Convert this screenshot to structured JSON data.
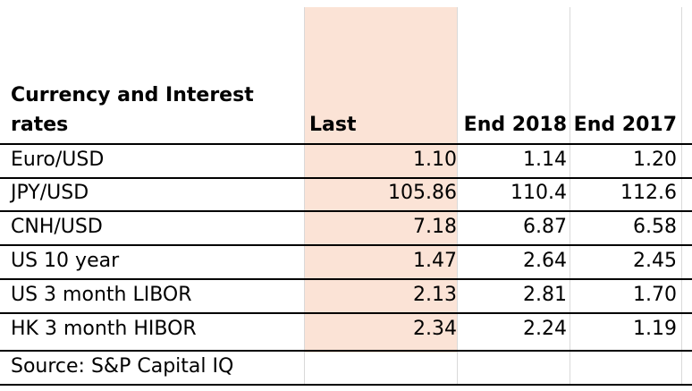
{
  "table": {
    "header": {
      "title_line1": "Currency and Interest",
      "title_line2": "rates",
      "col_last": "Last",
      "col_end2018": "End 2018",
      "col_end2017": "End 2017"
    },
    "rows": [
      {
        "label": "Euro/USD",
        "last": "1.10",
        "end2018": "1.14",
        "end2017": "1.20"
      },
      {
        "label": "JPY/USD",
        "last": "105.86",
        "end2018": "110.4",
        "end2017": "112.6"
      },
      {
        "label": "CNH/USD",
        "last": "7.18",
        "end2018": "6.87",
        "end2017": "6.58"
      },
      {
        "label": "US 10 year",
        "last": "1.47",
        "end2018": "2.64",
        "end2017": "2.45"
      },
      {
        "label": "US 3 month LIBOR",
        "last": "2.13",
        "end2018": "2.81",
        "end2017": "1.70"
      },
      {
        "label": "HK 3 month HIBOR",
        "last": "2.34",
        "end2018": "2.24",
        "end2017": "1.19"
      }
    ],
    "source": "Source: S&P Capital IQ"
  },
  "colors": {
    "highlight": "#fbe3d6",
    "rule": "#000000",
    "grid": "#d9d9d9"
  }
}
